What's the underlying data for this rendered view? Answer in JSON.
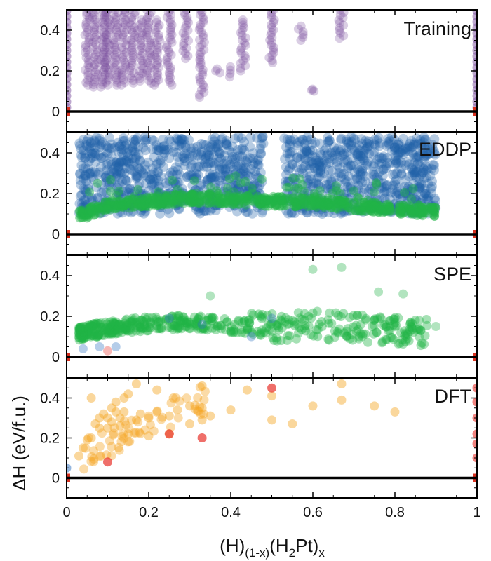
{
  "chart_data": {
    "type": "scatter",
    "shared_x_axis": {
      "label_base": "(H)",
      "label_sub1": "(1-x)",
      "label_mid": "(H",
      "label_sub2": "2",
      "label_tail": "Pt)",
      "label_sub3": "x",
      "xlim": [
        0,
        1
      ],
      "ticks": [
        "0",
        "0.2",
        "0.4",
        "0.6",
        "0.8",
        "1"
      ]
    },
    "ylabel": "ΔH (eV/f.u.)",
    "ylim": [
      -0.1,
      0.5
    ],
    "yticks": [
      "0",
      "0.2",
      "0.4"
    ],
    "colors": {
      "training": "#7b4f9e",
      "eddp_blue": "#1f5fa8",
      "eddp_green": "#21b347",
      "spe_green": "#21b347",
      "spe_blue": "#2c6fbf",
      "dft_orange": "#f5a623",
      "dft_red": "#e8322b",
      "hull_line": "#000000",
      "endpoint_red": "#d7301f"
    },
    "panels": [
      {
        "label": "Training",
        "series": [
          {
            "name": "training-structures",
            "color": "training",
            "columns": [
              {
                "x": 0.05,
                "ymin": 0.13,
                "ymax": 0.5
              },
              {
                "x": 0.07,
                "ymin": 0.12,
                "ymax": 0.5
              },
              {
                "x": 0.09,
                "ymin": 0.12,
                "ymax": 0.5
              },
              {
                "x": 0.1,
                "ymin": 0.13,
                "ymax": 0.5
              },
              {
                "x": 0.12,
                "ymin": 0.13,
                "ymax": 0.5
              },
              {
                "x": 0.14,
                "ymin": 0.13,
                "ymax": 0.5
              },
              {
                "x": 0.16,
                "ymin": 0.14,
                "ymax": 0.5
              },
              {
                "x": 0.18,
                "ymin": 0.15,
                "ymax": 0.45
              },
              {
                "x": 0.2,
                "ymin": 0.14,
                "ymax": 0.5
              },
              {
                "x": 0.22,
                "ymin": 0.13,
                "ymax": 0.45
              },
              {
                "x": 0.25,
                "ymin": 0.13,
                "ymax": 0.5
              },
              {
                "x": 0.29,
                "ymin": 0.26,
                "ymax": 0.5
              },
              {
                "x": 0.33,
                "ymin": 0.07,
                "ymax": 0.5
              },
              {
                "x": 0.37,
                "ymin": 0.19,
                "ymax": 0.21
              },
              {
                "x": 0.4,
                "ymin": 0.17,
                "ymax": 0.22
              },
              {
                "x": 0.43,
                "ymin": 0.2,
                "ymax": 0.45
              },
              {
                "x": 0.5,
                "ymin": 0.24,
                "ymax": 0.5
              },
              {
                "x": 0.57,
                "ymin": 0.35,
                "ymax": 0.42
              },
              {
                "x": 0.6,
                "ymin": 0.1,
                "ymax": 0.11
              },
              {
                "x": 0.67,
                "ymin": 0.36,
                "ymax": 0.5
              }
            ]
          }
        ]
      },
      {
        "label": "EDDP",
        "series": [
          {
            "name": "eddp-blue",
            "color": "eddp_blue",
            "region": {
              "xmin": 0.03,
              "xmax": 0.9,
              "ymin": 0.1,
              "ymax": 0.48
            }
          },
          {
            "name": "eddp-green",
            "color": "eddp_green",
            "trend": [
              [
                0.03,
                0.08
              ],
              [
                0.1,
                0.13
              ],
              [
                0.2,
                0.15
              ],
              [
                0.3,
                0.17
              ],
              [
                0.4,
                0.16
              ],
              [
                0.48,
                0.15
              ],
              [
                0.6,
                0.15
              ],
              [
                0.75,
                0.12
              ],
              [
                0.9,
                0.1
              ]
            ]
          }
        ]
      },
      {
        "label": "SPE",
        "series": [
          {
            "name": "spe-green",
            "color": "spe_green",
            "trend": [
              [
                0.03,
                0.11
              ],
              [
                0.1,
                0.14
              ],
              [
                0.2,
                0.16
              ],
              [
                0.3,
                0.17
              ],
              [
                0.4,
                0.15
              ],
              [
                0.5,
                0.14
              ],
              [
                0.6,
                0.15
              ],
              [
                0.75,
                0.13
              ],
              [
                0.88,
                0.11
              ]
            ]
          },
          {
            "name": "spe-blue",
            "color": "spe_blue",
            "points": [
              [
                0.04,
                0.04
              ],
              [
                0.08,
                0.05
              ],
              [
                0.12,
                0.05
              ],
              [
                0.25,
                0.19
              ],
              [
                0.33,
                0.16
              ],
              [
                0.5,
                0.19
              ],
              [
                0.45,
                0.1
              ]
            ]
          }
        ]
      },
      {
        "label": "DFT",
        "series": [
          {
            "name": "dft-orange",
            "color": "dft_orange",
            "points": [
              [
                0.05,
                0.19
              ],
              [
                0.06,
                0.2
              ],
              [
                0.07,
                0.27
              ],
              [
                0.08,
                0.25
              ],
              [
                0.08,
                0.3
              ],
              [
                0.09,
                0.32
              ],
              [
                0.1,
                0.25
              ],
              [
                0.1,
                0.3
              ],
              [
                0.11,
                0.35
              ],
              [
                0.11,
                0.28
              ],
              [
                0.12,
                0.33
              ],
              [
                0.12,
                0.38
              ],
              [
                0.13,
                0.3
              ],
              [
                0.13,
                0.26
              ],
              [
                0.14,
                0.4
              ],
              [
                0.14,
                0.33
              ],
              [
                0.15,
                0.22
              ],
              [
                0.15,
                0.42
              ],
              [
                0.17,
                0.47
              ],
              [
                0.18,
                0.32
              ],
              [
                0.2,
                0.21
              ],
              [
                0.2,
                0.3
              ],
              [
                0.22,
                0.33
              ],
              [
                0.22,
                0.44
              ],
              [
                0.25,
                0.31
              ],
              [
                0.25,
                0.22
              ],
              [
                0.27,
                0.34
              ],
              [
                0.3,
                0.27
              ],
              [
                0.3,
                0.36
              ],
              [
                0.33,
                0.29
              ],
              [
                0.33,
                0.35
              ],
              [
                0.33,
                0.46
              ],
              [
                0.35,
                0.31
              ],
              [
                0.4,
                0.34
              ],
              [
                0.44,
                0.44
              ],
              [
                0.5,
                0.29
              ],
              [
                0.5,
                0.41
              ],
              [
                0.55,
                0.27
              ],
              [
                0.6,
                0.36
              ],
              [
                0.67,
                0.39
              ],
              [
                0.67,
                0.47
              ],
              [
                0.75,
                0.36
              ],
              [
                0.8,
                0.33
              ],
              [
                0.06,
                0.4
              ],
              [
                0.03,
                0.11
              ],
              [
                0.04,
                0.15
              ],
              [
                0.17,
                0.29
              ],
              [
                0.26,
                0.4
              ]
            ]
          },
          {
            "name": "dft-red",
            "color": "dft_red",
            "points": [
              [
                0.1,
                0.08
              ],
              [
                0.5,
                0.45
              ],
              [
                0.33,
                0.2
              ],
              [
                0.25,
                0.22
              ]
            ]
          }
        ]
      }
    ]
  }
}
